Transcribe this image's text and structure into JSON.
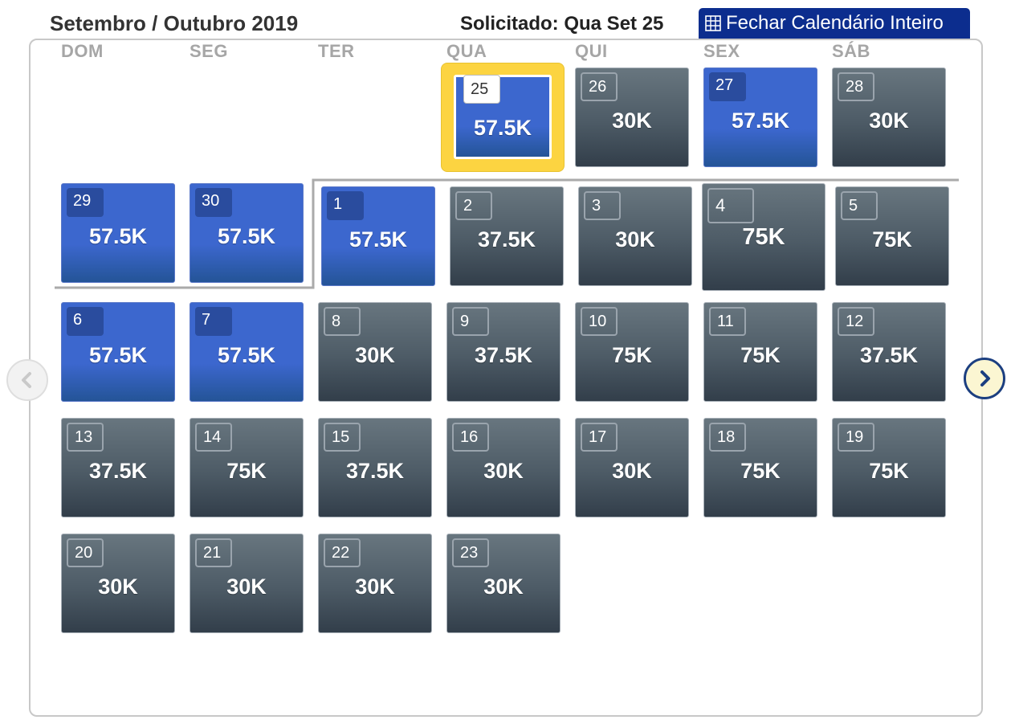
{
  "header": {
    "month_title": "Setembro / Outubro 2019",
    "requested_label": "Solicitado: Qua Set 25",
    "close_button_label": "Fechar Calendário Inteiro"
  },
  "weekdays": [
    "DOM",
    "SEG",
    "TER",
    "QUA",
    "QUI",
    "SEX",
    "SÁB"
  ],
  "days": [
    {
      "day": "25",
      "price": "57.5K",
      "state": "selected"
    },
    {
      "day": "26",
      "price": "30K",
      "state": "gray"
    },
    {
      "day": "27",
      "price": "57.5K",
      "state": "blue"
    },
    {
      "day": "28",
      "price": "30K",
      "state": "gray"
    },
    {
      "day": "29",
      "price": "57.5K",
      "state": "blue"
    },
    {
      "day": "30",
      "price": "57.5K",
      "state": "blue"
    },
    {
      "day": "1",
      "price": "57.5K",
      "state": "blue"
    },
    {
      "day": "2",
      "price": "37.5K",
      "state": "gray"
    },
    {
      "day": "3",
      "price": "30K",
      "state": "gray"
    },
    {
      "day": "4",
      "price": "75K",
      "state": "gray"
    },
    {
      "day": "5",
      "price": "75K",
      "state": "gray"
    },
    {
      "day": "6",
      "price": "57.5K",
      "state": "blue"
    },
    {
      "day": "7",
      "price": "57.5K",
      "state": "blue"
    },
    {
      "day": "8",
      "price": "30K",
      "state": "gray"
    },
    {
      "day": "9",
      "price": "37.5K",
      "state": "gray"
    },
    {
      "day": "10",
      "price": "75K",
      "state": "gray"
    },
    {
      "day": "11",
      "price": "75K",
      "state": "gray"
    },
    {
      "day": "12",
      "price": "37.5K",
      "state": "gray"
    },
    {
      "day": "13",
      "price": "37.5K",
      "state": "gray"
    },
    {
      "day": "14",
      "price": "75K",
      "state": "gray"
    },
    {
      "day": "15",
      "price": "37.5K",
      "state": "gray"
    },
    {
      "day": "16",
      "price": "30K",
      "state": "gray"
    },
    {
      "day": "17",
      "price": "30K",
      "state": "gray"
    },
    {
      "day": "18",
      "price": "75K",
      "state": "gray"
    },
    {
      "day": "19",
      "price": "75K",
      "state": "gray"
    },
    {
      "day": "20",
      "price": "30K",
      "state": "gray"
    },
    {
      "day": "21",
      "price": "30K",
      "state": "gray"
    },
    {
      "day": "22",
      "price": "30K",
      "state": "gray"
    },
    {
      "day": "23",
      "price": "30K",
      "state": "gray"
    }
  ],
  "colors": {
    "blue_cell": "#3c67ce",
    "gray_cell": "#4d5b66",
    "selected_highlight": "#fcd441",
    "close_button": "#0c2d8e"
  },
  "icons": {
    "close_button": "grid-icon",
    "prev": "chevron-left-icon",
    "next": "chevron-right-icon"
  }
}
